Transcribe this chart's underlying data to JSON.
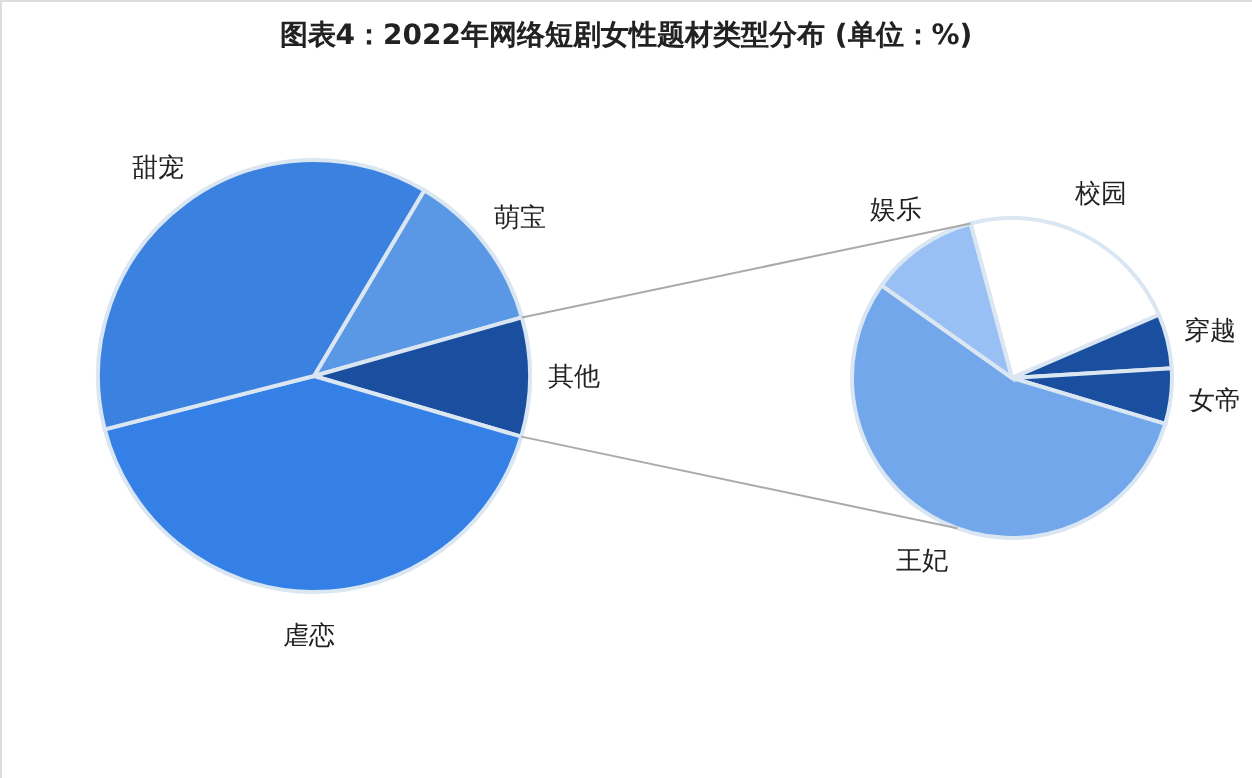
{
  "chart_data": [
    {
      "type": "pie",
      "title": "图表4：2022年网络短剧女性题材类型分布 (单位：%)",
      "categories": [
        "萌宝",
        "其他",
        "虐恋",
        "甜宠"
      ],
      "values": [
        12.1,
        8.9,
        41.5,
        37.5
      ],
      "colors": [
        "#5a98e6",
        "#1a4fa0",
        "#3580e6",
        "#3b82e0"
      ]
    },
    {
      "type": "pie",
      "categories": [
        "校园",
        "穿越",
        "女帝",
        "王妃",
        "娱乐"
      ],
      "values": [
        22.7,
        5.5,
        5.6,
        55.2,
        11.0
      ],
      "colors": [
        "#ffffff",
        "#1a4fa0",
        "#1a4fa0",
        "#72a7ec",
        "#99c0f4"
      ]
    }
  ]
}
